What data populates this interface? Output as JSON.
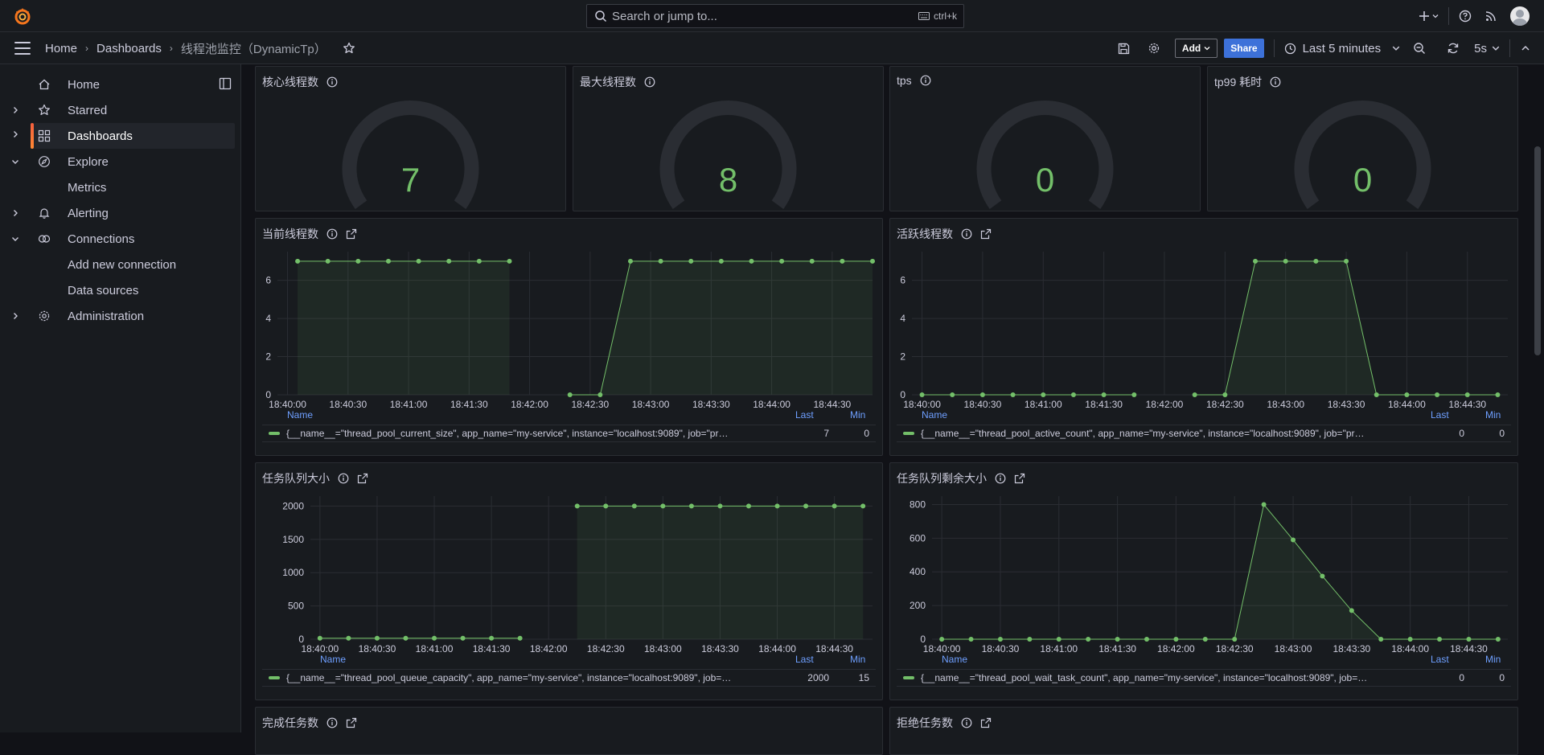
{
  "topbar": {
    "search_placeholder": "Search or jump to...",
    "search_shortcut": "ctrl+k"
  },
  "breadcrumb": {
    "home": "Home",
    "dashboards": "Dashboards",
    "current": "线程池监控（DynamicTp）"
  },
  "toolbar": {
    "add_label": "Add",
    "share_label": "Share",
    "time_range": "Last 5 minutes",
    "refresh_interval": "5s"
  },
  "sidebar": {
    "items": [
      {
        "label": "Home",
        "icon": "home-icon",
        "chevron": ""
      },
      {
        "label": "Starred",
        "icon": "star-icon",
        "chevron": "right"
      },
      {
        "label": "Dashboards",
        "icon": "apps-icon",
        "chevron": "right",
        "active": true
      },
      {
        "label": "Explore",
        "icon": "compass-icon",
        "chevron": "down"
      },
      {
        "label": "Metrics",
        "icon": "",
        "chevron": ""
      },
      {
        "label": "Alerting",
        "icon": "bell-icon",
        "chevron": "right"
      },
      {
        "label": "Connections",
        "icon": "link-icon",
        "chevron": "down"
      },
      {
        "label": "Add new connection",
        "icon": "",
        "chevron": ""
      },
      {
        "label": "Data sources",
        "icon": "",
        "chevron": ""
      },
      {
        "label": "Administration",
        "icon": "cog-icon",
        "chevron": "right"
      }
    ]
  },
  "gauges": [
    {
      "title": "核心线程数",
      "value": "7"
    },
    {
      "title": "最大线程数",
      "value": "8"
    },
    {
      "title": "tps",
      "value": "0"
    },
    {
      "title": "tp99 耗时",
      "value": "0"
    }
  ],
  "legend_headers": {
    "name": "Name",
    "last": "Last",
    "min": "Min"
  },
  "bottom_panels": {
    "left": "完成任务数",
    "right": "拒绝任务数"
  },
  "colors": {
    "series": "#73bf69",
    "accent": "#3d71d9",
    "brand": "#f55f3e"
  },
  "chart_data": [
    {
      "type": "line",
      "title": "当前线程数",
      "x_ticks": [
        "18:40:00",
        "18:40:30",
        "18:41:00",
        "18:41:30",
        "18:42:00",
        "18:42:30",
        "18:43:00",
        "18:43:30",
        "18:44:00",
        "18:44:30"
      ],
      "y_ticks": [
        "0",
        "2",
        "4",
        "6"
      ],
      "ylim": [
        0,
        7.5
      ],
      "xlim": [
        "18:39:55",
        "18:44:50"
      ],
      "series": [
        {
          "name": "{__name__=\"thread_pool_current_size\", app_name=\"my-service\", instance=\"localhost:9089\", job=\"pr…",
          "last": "7",
          "min": "0",
          "segments": [
            [
              [
                "18:40:05",
                7
              ],
              [
                "18:40:20",
                7
              ],
              [
                "18:40:35",
                7
              ],
              [
                "18:40:50",
                7
              ],
              [
                "18:41:05",
                7
              ],
              [
                "18:41:20",
                7
              ],
              [
                "18:41:35",
                7
              ],
              [
                "18:41:50",
                7
              ]
            ],
            [
              [
                "18:42:20",
                0
              ],
              [
                "18:42:35",
                0
              ],
              [
                "18:42:50",
                7
              ],
              [
                "18:43:05",
                7
              ],
              [
                "18:43:20",
                7
              ],
              [
                "18:43:35",
                7
              ],
              [
                "18:43:50",
                7
              ],
              [
                "18:44:05",
                7
              ],
              [
                "18:44:20",
                7
              ],
              [
                "18:44:35",
                7
              ],
              [
                "18:44:50",
                7
              ]
            ]
          ]
        }
      ]
    },
    {
      "type": "line",
      "title": "活跃线程数",
      "x_ticks": [
        "18:40:00",
        "18:40:30",
        "18:41:00",
        "18:41:30",
        "18:42:00",
        "18:42:30",
        "18:43:00",
        "18:43:30",
        "18:44:00",
        "18:44:30"
      ],
      "y_ticks": [
        "0",
        "2",
        "4",
        "6"
      ],
      "ylim": [
        0,
        7.5
      ],
      "xlim": [
        "18:39:55",
        "18:44:50"
      ],
      "series": [
        {
          "name": "{__name__=\"thread_pool_active_count\", app_name=\"my-service\", instance=\"localhost:9089\", job=\"pr…",
          "last": "0",
          "min": "0",
          "segments": [
            [
              [
                "18:40:00",
                0
              ],
              [
                "18:40:15",
                0
              ],
              [
                "18:40:30",
                0
              ],
              [
                "18:40:45",
                0
              ],
              [
                "18:41:00",
                0
              ],
              [
                "18:41:15",
                0
              ],
              [
                "18:41:30",
                0
              ],
              [
                "18:41:45",
                0
              ]
            ],
            [
              [
                "18:42:15",
                0
              ],
              [
                "18:42:30",
                0
              ],
              [
                "18:42:45",
                7
              ],
              [
                "18:43:00",
                7
              ],
              [
                "18:43:15",
                7
              ],
              [
                "18:43:30",
                7
              ],
              [
                "18:43:45",
                0
              ],
              [
                "18:44:00",
                0
              ],
              [
                "18:44:15",
                0
              ],
              [
                "18:44:30",
                0
              ],
              [
                "18:44:45",
                0
              ]
            ]
          ]
        }
      ]
    },
    {
      "type": "line",
      "title": "任务队列大小",
      "x_ticks": [
        "18:40:00",
        "18:40:30",
        "18:41:00",
        "18:41:30",
        "18:42:00",
        "18:42:30",
        "18:43:00",
        "18:43:30",
        "18:44:00",
        "18:44:30"
      ],
      "y_ticks": [
        "0",
        "500",
        "1000",
        "1500",
        "2000"
      ],
      "ylim": [
        0,
        2150
      ],
      "xlim": [
        "18:39:55",
        "18:44:50"
      ],
      "series": [
        {
          "name": "{__name__=\"thread_pool_queue_capacity\", app_name=\"my-service\", instance=\"localhost:9089\", job=…",
          "last": "2000",
          "min": "15",
          "segments": [
            [
              [
                "18:40:00",
                15
              ],
              [
                "18:40:15",
                15
              ],
              [
                "18:40:30",
                15
              ],
              [
                "18:40:45",
                15
              ],
              [
                "18:41:00",
                15
              ],
              [
                "18:41:15",
                15
              ],
              [
                "18:41:30",
                15
              ],
              [
                "18:41:45",
                15
              ]
            ],
            [
              [
                "18:42:15",
                2000
              ],
              [
                "18:42:30",
                2000
              ],
              [
                "18:42:45",
                2000
              ],
              [
                "18:43:00",
                2000
              ],
              [
                "18:43:15",
                2000
              ],
              [
                "18:43:30",
                2000
              ],
              [
                "18:43:45",
                2000
              ],
              [
                "18:44:00",
                2000
              ],
              [
                "18:44:15",
                2000
              ],
              [
                "18:44:30",
                2000
              ],
              [
                "18:44:45",
                2000
              ]
            ]
          ]
        }
      ]
    },
    {
      "type": "line",
      "title": "任务队列剩余大小",
      "x_ticks": [
        "18:40:00",
        "18:40:30",
        "18:41:00",
        "18:41:30",
        "18:42:00",
        "18:42:30",
        "18:43:00",
        "18:43:30",
        "18:44:00",
        "18:44:30"
      ],
      "y_ticks": [
        "0",
        "200",
        "400",
        "600",
        "800"
      ],
      "ylim": [
        0,
        850
      ],
      "xlim": [
        "18:39:55",
        "18:44:50"
      ],
      "series": [
        {
          "name": "{__name__=\"thread_pool_wait_task_count\", app_name=\"my-service\", instance=\"localhost:9089\", job=…",
          "last": "0",
          "min": "0",
          "segments": [
            [
              [
                "18:40:00",
                0
              ],
              [
                "18:40:15",
                0
              ],
              [
                "18:40:30",
                0
              ],
              [
                "18:40:45",
                0
              ],
              [
                "18:41:00",
                0
              ],
              [
                "18:41:15",
                0
              ],
              [
                "18:41:30",
                0
              ],
              [
                "18:41:45",
                0
              ],
              [
                "18:42:00",
                0
              ],
              [
                "18:42:15",
                0
              ],
              [
                "18:42:30",
                0
              ],
              [
                "18:42:45",
                800
              ],
              [
                "18:43:00",
                590
              ],
              [
                "18:43:15",
                375
              ],
              [
                "18:43:30",
                170
              ],
              [
                "18:43:45",
                0
              ],
              [
                "18:44:00",
                0
              ],
              [
                "18:44:15",
                0
              ],
              [
                "18:44:30",
                0
              ],
              [
                "18:44:45",
                0
              ]
            ]
          ]
        }
      ]
    }
  ]
}
